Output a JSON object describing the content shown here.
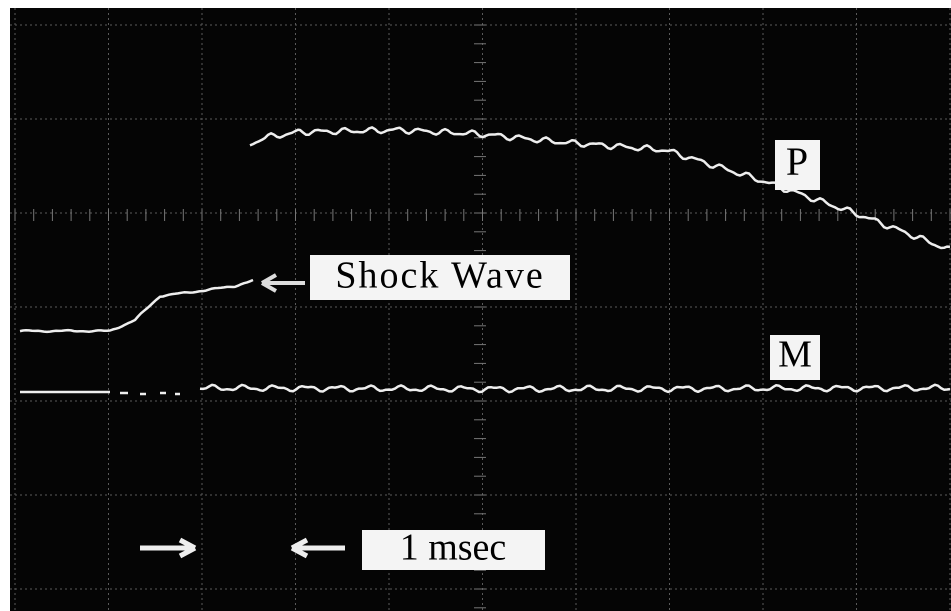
{
  "labels": {
    "p": "P",
    "shock_wave": "Shock Wave",
    "m": "M",
    "time_scale": "1 msec"
  }
}
